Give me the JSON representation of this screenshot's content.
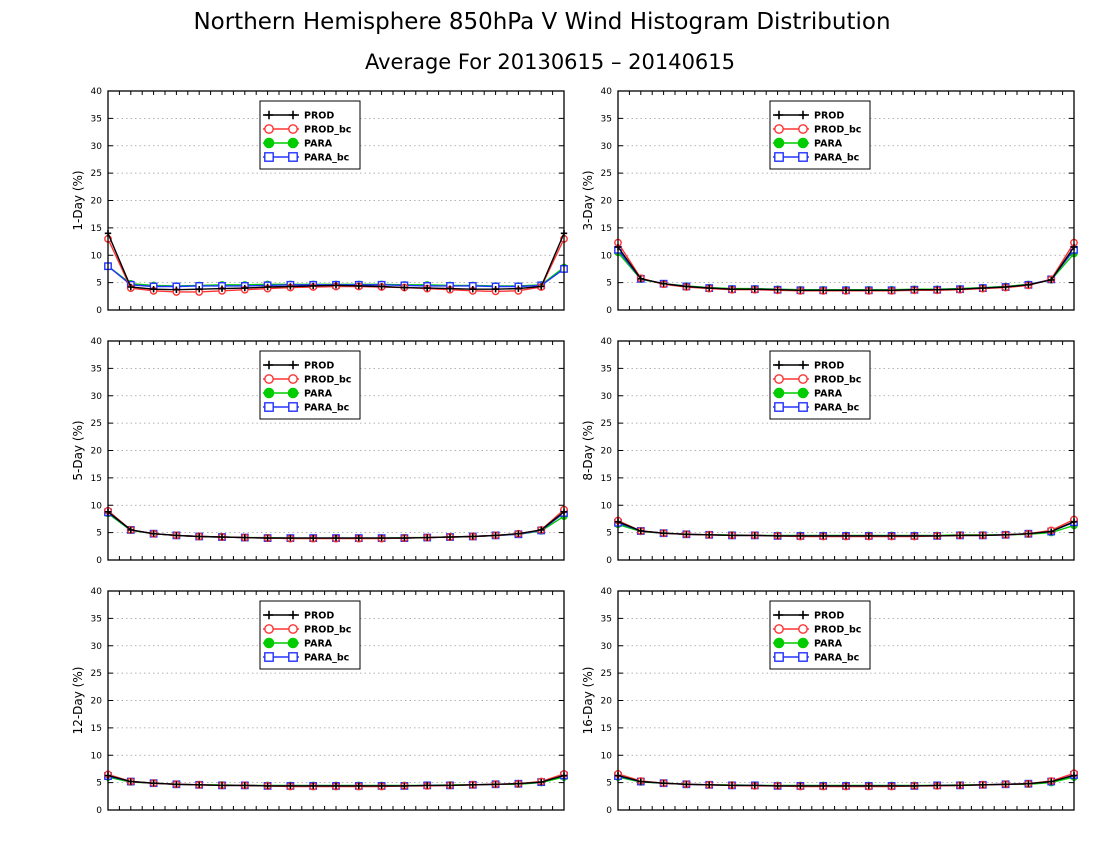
{
  "figure": {
    "title": "Northern Hemisphere 850hPa V Wind Histogram Distribution",
    "subtitle": "Average For 20130615 – 20140615"
  },
  "series_styles": [
    {
      "name": "PROD",
      "color": "#000000",
      "marker": "plus"
    },
    {
      "name": "PROD_bc",
      "color": "#ff3333",
      "marker": "open-circle"
    },
    {
      "name": "PARA",
      "color": "#00cc00",
      "marker": "filled-circle"
    },
    {
      "name": "PARA_bc",
      "color": "#2233ff",
      "marker": "open-square"
    }
  ],
  "chart_data": [
    {
      "type": "line",
      "ylabel": "1-Day (%)",
      "ylim": [
        0,
        40
      ],
      "yticks": [
        0,
        5,
        10,
        15,
        20,
        25,
        30,
        35,
        40
      ],
      "grid": true,
      "legend_position": "top-center",
      "x": [
        1,
        2,
        3,
        4,
        5,
        6,
        7,
        8,
        9,
        10,
        11,
        12,
        13,
        14,
        15,
        16,
        17,
        18,
        19,
        20,
        21
      ],
      "series": [
        {
          "name": "PROD",
          "values": [
            14.0,
            4.2,
            3.8,
            3.7,
            3.8,
            3.9,
            4.0,
            4.2,
            4.3,
            4.4,
            4.5,
            4.4,
            4.3,
            4.1,
            4.0,
            3.9,
            3.8,
            3.8,
            3.9,
            4.3,
            14.0
          ]
        },
        {
          "name": "PROD_bc",
          "values": [
            13.0,
            4.0,
            3.5,
            3.3,
            3.3,
            3.5,
            3.7,
            3.9,
            4.1,
            4.2,
            4.3,
            4.3,
            4.2,
            4.1,
            3.9,
            3.7,
            3.5,
            3.4,
            3.5,
            4.2,
            13.0
          ]
        },
        {
          "name": "PARA",
          "values": [
            8.0,
            4.8,
            4.5,
            4.4,
            4.5,
            4.6,
            4.6,
            4.7,
            4.7,
            4.7,
            4.7,
            4.7,
            4.7,
            4.6,
            4.6,
            4.5,
            4.5,
            4.4,
            4.4,
            4.6,
            7.8
          ]
        },
        {
          "name": "PARA_bc",
          "values": [
            8.0,
            4.6,
            4.3,
            4.3,
            4.4,
            4.4,
            4.4,
            4.5,
            4.6,
            4.6,
            4.6,
            4.6,
            4.6,
            4.5,
            4.4,
            4.4,
            4.4,
            4.3,
            4.3,
            4.5,
            7.5
          ]
        }
      ]
    },
    {
      "type": "line",
      "ylabel": "3-Day (%)",
      "ylim": [
        0,
        40
      ],
      "yticks": [
        0,
        5,
        10,
        15,
        20,
        25,
        30,
        35,
        40
      ],
      "grid": true,
      "legend_position": "top-center",
      "x": [
        1,
        2,
        3,
        4,
        5,
        6,
        7,
        8,
        9,
        10,
        11,
        12,
        13,
        14,
        15,
        16,
        17,
        18,
        19,
        20,
        21
      ],
      "series": [
        {
          "name": "PROD",
          "values": [
            11.5,
            5.7,
            4.8,
            4.3,
            4.0,
            3.8,
            3.8,
            3.7,
            3.6,
            3.6,
            3.6,
            3.6,
            3.6,
            3.7,
            3.7,
            3.8,
            4.0,
            4.2,
            4.6,
            5.5,
            11.5
          ]
        },
        {
          "name": "PROD_bc",
          "values": [
            12.3,
            5.8,
            4.7,
            4.2,
            3.9,
            3.7,
            3.7,
            3.6,
            3.5,
            3.5,
            3.5,
            3.5,
            3.5,
            3.6,
            3.6,
            3.7,
            3.9,
            4.1,
            4.5,
            5.6,
            12.3
          ]
        },
        {
          "name": "PARA",
          "values": [
            10.5,
            5.6,
            4.8,
            4.4,
            4.1,
            3.9,
            3.9,
            3.8,
            3.7,
            3.7,
            3.7,
            3.7,
            3.7,
            3.8,
            3.8,
            3.9,
            4.1,
            4.3,
            4.7,
            5.5,
            10.3
          ]
        },
        {
          "name": "PARA_bc",
          "values": [
            11.0,
            5.7,
            4.8,
            4.3,
            4.0,
            3.8,
            3.8,
            3.7,
            3.6,
            3.6,
            3.6,
            3.6,
            3.6,
            3.7,
            3.7,
            3.8,
            4.0,
            4.2,
            4.6,
            5.6,
            11.0
          ]
        }
      ]
    },
    {
      "type": "line",
      "ylabel": "5-Day (%)",
      "ylim": [
        0,
        40
      ],
      "yticks": [
        0,
        5,
        10,
        15,
        20,
        25,
        30,
        35,
        40
      ],
      "grid": true,
      "legend_position": "top-center",
      "x": [
        1,
        2,
        3,
        4,
        5,
        6,
        7,
        8,
        9,
        10,
        11,
        12,
        13,
        14,
        15,
        16,
        17,
        18,
        19,
        20,
        21
      ],
      "series": [
        {
          "name": "PROD",
          "values": [
            8.8,
            5.5,
            4.8,
            4.5,
            4.3,
            4.2,
            4.1,
            4.0,
            4.0,
            4.0,
            4.0,
            4.0,
            4.0,
            4.0,
            4.1,
            4.2,
            4.3,
            4.5,
            4.8,
            5.5,
            8.8
          ]
        },
        {
          "name": "PROD_bc",
          "values": [
            9.0,
            5.5,
            4.8,
            4.5,
            4.3,
            4.2,
            4.1,
            4.0,
            3.9,
            3.9,
            3.9,
            3.9,
            3.9,
            4.0,
            4.1,
            4.2,
            4.3,
            4.5,
            4.8,
            5.5,
            9.2
          ]
        },
        {
          "name": "PARA",
          "values": [
            8.5,
            5.4,
            4.8,
            4.5,
            4.3,
            4.2,
            4.1,
            4.1,
            4.0,
            4.0,
            4.0,
            4.0,
            4.0,
            4.1,
            4.1,
            4.2,
            4.3,
            4.5,
            4.7,
            5.3,
            8.0
          ]
        },
        {
          "name": "PARA_bc",
          "values": [
            8.7,
            5.5,
            4.8,
            4.5,
            4.3,
            4.2,
            4.1,
            4.0,
            4.0,
            4.0,
            4.0,
            4.0,
            4.0,
            4.0,
            4.1,
            4.2,
            4.3,
            4.5,
            4.7,
            5.4,
            8.6
          ]
        }
      ]
    },
    {
      "type": "line",
      "ylabel": "8-Day (%)",
      "ylim": [
        0,
        40
      ],
      "yticks": [
        0,
        5,
        10,
        15,
        20,
        25,
        30,
        35,
        40
      ],
      "grid": true,
      "legend_position": "top-center",
      "x": [
        1,
        2,
        3,
        4,
        5,
        6,
        7,
        8,
        9,
        10,
        11,
        12,
        13,
        14,
        15,
        16,
        17,
        18,
        19,
        20,
        21
      ],
      "series": [
        {
          "name": "PROD",
          "values": [
            7.0,
            5.3,
            4.9,
            4.7,
            4.6,
            4.5,
            4.5,
            4.4,
            4.4,
            4.4,
            4.4,
            4.4,
            4.4,
            4.4,
            4.4,
            4.5,
            4.5,
            4.6,
            4.8,
            5.2,
            7.0
          ]
        },
        {
          "name": "PROD_bc",
          "values": [
            7.2,
            5.3,
            4.9,
            4.7,
            4.6,
            4.5,
            4.5,
            4.4,
            4.3,
            4.3,
            4.3,
            4.3,
            4.3,
            4.3,
            4.4,
            4.5,
            4.5,
            4.6,
            4.8,
            5.4,
            7.4
          ]
        },
        {
          "name": "PARA",
          "values": [
            6.5,
            5.2,
            4.9,
            4.7,
            4.6,
            4.6,
            4.5,
            4.5,
            4.5,
            4.5,
            4.5,
            4.5,
            4.5,
            4.5,
            4.5,
            4.6,
            4.6,
            4.6,
            4.7,
            5.0,
            6.3
          ]
        },
        {
          "name": "PARA_bc",
          "values": [
            6.8,
            5.3,
            4.9,
            4.7,
            4.6,
            4.5,
            4.5,
            4.4,
            4.4,
            4.4,
            4.4,
            4.4,
            4.4,
            4.4,
            4.4,
            4.5,
            4.5,
            4.6,
            4.8,
            5.2,
            6.9
          ]
        }
      ]
    },
    {
      "type": "line",
      "ylabel": "12-Day (%)",
      "ylim": [
        0,
        40
      ],
      "yticks": [
        0,
        5,
        10,
        15,
        20,
        25,
        30,
        35,
        40
      ],
      "grid": true,
      "legend_position": "top-center",
      "x": [
        1,
        2,
        3,
        4,
        5,
        6,
        7,
        8,
        9,
        10,
        11,
        12,
        13,
        14,
        15,
        16,
        17,
        18,
        19,
        20,
        21
      ],
      "series": [
        {
          "name": "PROD",
          "values": [
            6.3,
            5.2,
            4.9,
            4.7,
            4.6,
            4.5,
            4.5,
            4.4,
            4.4,
            4.4,
            4.4,
            4.4,
            4.4,
            4.4,
            4.5,
            4.5,
            4.6,
            4.7,
            4.8,
            5.1,
            6.3
          ]
        },
        {
          "name": "PROD_bc",
          "values": [
            6.5,
            5.2,
            4.9,
            4.7,
            4.6,
            4.5,
            4.5,
            4.4,
            4.3,
            4.3,
            4.3,
            4.3,
            4.3,
            4.4,
            4.4,
            4.5,
            4.6,
            4.7,
            4.8,
            5.2,
            6.6
          ]
        },
        {
          "name": "PARA",
          "values": [
            6.0,
            5.1,
            4.9,
            4.7,
            4.6,
            4.6,
            4.5,
            4.5,
            4.5,
            4.5,
            4.5,
            4.5,
            4.5,
            4.5,
            4.5,
            4.6,
            4.6,
            4.7,
            4.7,
            5.0,
            6.0
          ]
        },
        {
          "name": "PARA_bc",
          "values": [
            6.2,
            5.2,
            4.9,
            4.7,
            4.6,
            4.5,
            4.5,
            4.4,
            4.4,
            4.4,
            4.4,
            4.4,
            4.4,
            4.4,
            4.5,
            4.5,
            4.6,
            4.7,
            4.8,
            5.1,
            6.3
          ]
        }
      ]
    },
    {
      "type": "line",
      "ylabel": "16-Day (%)",
      "ylim": [
        0,
        40
      ],
      "yticks": [
        0,
        5,
        10,
        15,
        20,
        25,
        30,
        35,
        40
      ],
      "grid": true,
      "legend_position": "top-center",
      "x": [
        1,
        2,
        3,
        4,
        5,
        6,
        7,
        8,
        9,
        10,
        11,
        12,
        13,
        14,
        15,
        16,
        17,
        18,
        19,
        20,
        21
      ],
      "series": [
        {
          "name": "PROD",
          "values": [
            6.3,
            5.2,
            4.9,
            4.7,
            4.6,
            4.5,
            4.5,
            4.4,
            4.4,
            4.4,
            4.4,
            4.4,
            4.4,
            4.4,
            4.5,
            4.5,
            4.6,
            4.7,
            4.8,
            5.2,
            6.3
          ]
        },
        {
          "name": "PROD_bc",
          "values": [
            6.6,
            5.3,
            4.9,
            4.7,
            4.6,
            4.5,
            4.4,
            4.4,
            4.3,
            4.3,
            4.3,
            4.3,
            4.3,
            4.4,
            4.4,
            4.5,
            4.6,
            4.7,
            4.8,
            5.3,
            6.7
          ]
        },
        {
          "name": "PARA",
          "values": [
            6.0,
            5.1,
            4.9,
            4.7,
            4.6,
            4.6,
            4.5,
            4.5,
            4.5,
            4.5,
            4.5,
            4.5,
            4.5,
            4.5,
            4.5,
            4.6,
            4.6,
            4.7,
            4.7,
            5.0,
            6.0
          ]
        },
        {
          "name": "PARA_bc",
          "values": [
            6.2,
            5.2,
            4.9,
            4.7,
            4.6,
            4.5,
            4.5,
            4.4,
            4.4,
            4.4,
            4.4,
            4.4,
            4.4,
            4.4,
            4.5,
            4.5,
            4.6,
            4.7,
            4.8,
            5.2,
            6.4
          ]
        }
      ]
    }
  ]
}
